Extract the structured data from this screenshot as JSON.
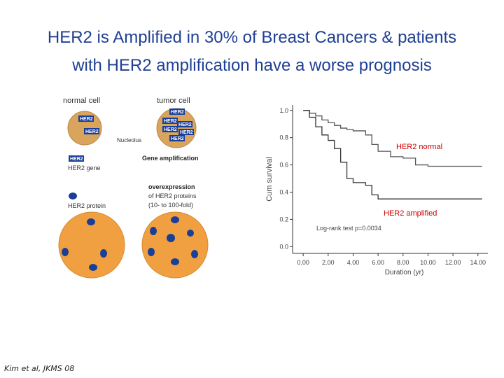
{
  "title": {
    "line1": "HER2 is Amplified in 30% of Breast Cancers & patients",
    "line2": "with HER2 amplification have a worse prognosis"
  },
  "diagram": {
    "normal_cell": "normal cell",
    "tumor_cell": "tumor cell",
    "box": "HER2",
    "nucleolus": "Nucleolus",
    "gene_amplification": "Gene amplification",
    "gene_legend": "HER2  gene",
    "overexpression": "overexpression",
    "overexpression_line2": "of HER2 proteins",
    "overexpression_line3": "(10- to 100-fold)",
    "protein_legend": "HER2  protein"
  },
  "citation": "Kim et al, JKMS 08",
  "chart_data": {
    "type": "step",
    "xlabel": "Duration (yr)",
    "ylabel": "Cum survival",
    "annotation": "Log-rank test p=0.0034",
    "x": [
      0,
      0.5,
      1,
      1.5,
      2,
      2.5,
      3,
      3.5,
      4,
      5,
      5.5,
      6,
      7,
      8,
      9,
      10,
      14
    ],
    "series": [
      {
        "name": "HER2 normal",
        "color": "#555555",
        "label_color": "#cc0000",
        "values": [
          1.0,
          0.98,
          0.96,
          0.93,
          0.91,
          0.89,
          0.87,
          0.86,
          0.85,
          0.82,
          0.75,
          0.7,
          0.66,
          0.65,
          0.6,
          0.59,
          0.59
        ]
      },
      {
        "name": "HER2 amplified",
        "color": "#333333",
        "label_color": "#cc0000",
        "values": [
          1.0,
          0.95,
          0.88,
          0.82,
          0.78,
          0.72,
          0.62,
          0.5,
          0.47,
          0.45,
          0.38,
          0.35,
          0.35,
          0.35,
          0.35,
          0.35,
          0.35
        ]
      }
    ],
    "xlim": [
      -0.85,
      14.8
    ],
    "ylim": [
      -0.05,
      1.04
    ],
    "xticks": [
      {
        "value": 0,
        "label": "0.00"
      },
      {
        "value": 2,
        "label": "2.00"
      },
      {
        "value": 4,
        "label": "4.00"
      },
      {
        "value": 6,
        "label": "6.00"
      },
      {
        "value": 8,
        "label": "8.00"
      },
      {
        "value": 10,
        "label": "10.00"
      },
      {
        "value": 12,
        "label": "12.00"
      },
      {
        "value": 14,
        "label": "14.00"
      }
    ],
    "yticks": [
      {
        "value": 1,
        "label": "1.0"
      },
      0.8,
      0.6,
      0.4,
      0.2,
      {
        "value": 0,
        "label": "0.0"
      }
    ]
  }
}
